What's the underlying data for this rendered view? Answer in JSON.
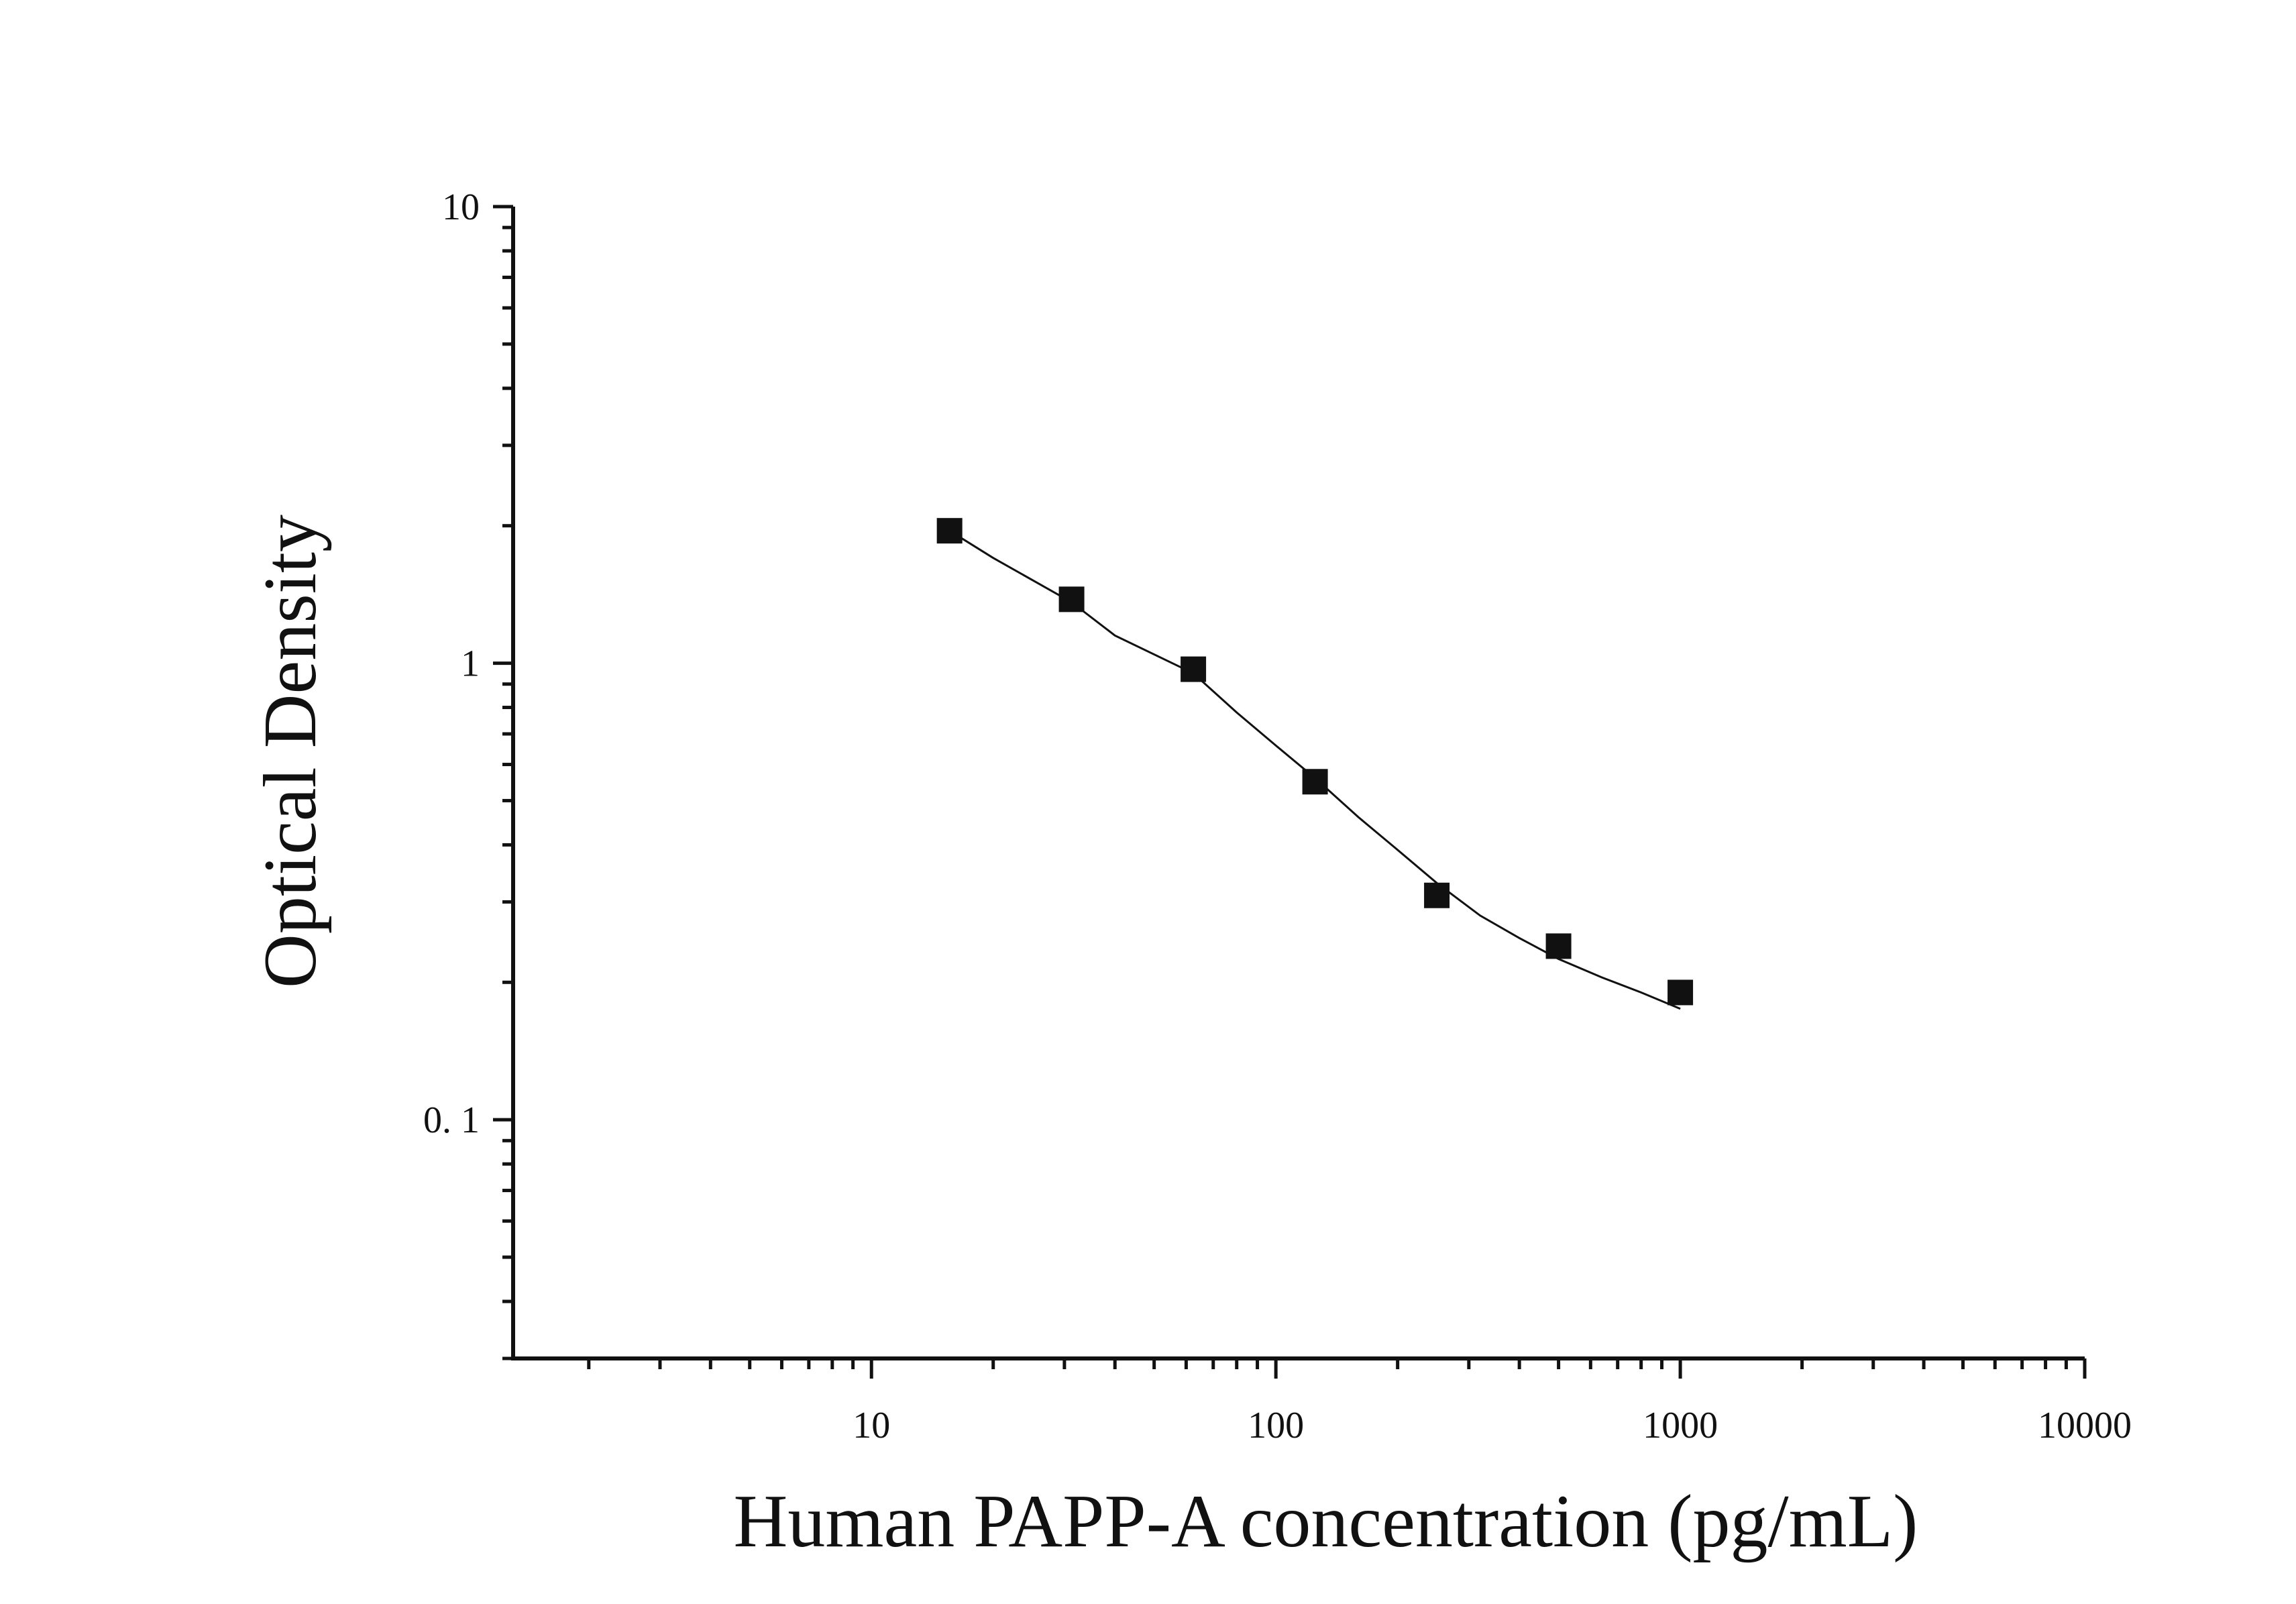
{
  "chart_data": {
    "type": "scatter",
    "title": "",
    "xlabel": "Human PAPP-A concentration (pg/mL)",
    "ylabel": "Optical Density",
    "x_scale": "log",
    "y_scale": "log",
    "xlim": [
      1.3,
      10000
    ],
    "ylim": [
      0.03,
      10
    ],
    "x_ticks": [
      {
        "value": 10,
        "label": "10"
      },
      {
        "value": 100,
        "label": "100"
      },
      {
        "value": 1000,
        "label": "1000"
      },
      {
        "value": 10000,
        "label": "10000"
      }
    ],
    "y_ticks": [
      {
        "value": 0.1,
        "label": "0. 1"
      },
      {
        "value": 1,
        "label": "1"
      },
      {
        "value": 10,
        "label": "10"
      }
    ],
    "grid": false,
    "legend": "none",
    "series": [
      {
        "marker": "square",
        "color": "#111111",
        "x": [
          15.6,
          31.25,
          62.5,
          125,
          250,
          500,
          1000
        ],
        "y": [
          1.95,
          1.38,
          0.97,
          0.55,
          0.31,
          0.24,
          0.19
        ]
      }
    ],
    "fit_curve": {
      "color": "#111111",
      "x": [
        15.6,
        20,
        31.25,
        40,
        62.5,
        80,
        100,
        125,
        160,
        200,
        250,
        320,
        400,
        500,
        640,
        800,
        1000
      ],
      "y": [
        1.95,
        1.7,
        1.36,
        1.15,
        0.95,
        0.78,
        0.66,
        0.56,
        0.46,
        0.39,
        0.33,
        0.28,
        0.25,
        0.225,
        0.205,
        0.19,
        0.175
      ]
    }
  }
}
